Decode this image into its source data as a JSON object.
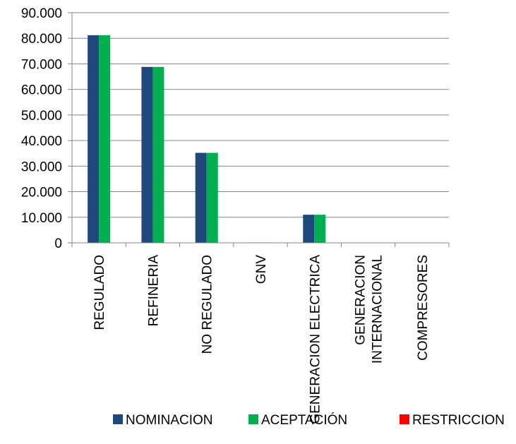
{
  "chart_data": {
    "type": "bar",
    "categories": [
      [
        "REGULADO"
      ],
      [
        "REFINERIA"
      ],
      [
        "NO REGULADO"
      ],
      [
        "GNV"
      ],
      [
        "GENERACION ELECTRICA"
      ],
      [
        "GENERACION",
        "INTERNACIONAL"
      ],
      [
        "COMPRESORES"
      ]
    ],
    "series": [
      {
        "name": "NOMINACION",
        "color": "#1F497D",
        "values": [
          81200,
          68800,
          35200,
          150,
          11000,
          0,
          0
        ]
      },
      {
        "name": "ACEPTACIÓN",
        "color": "#00B050",
        "values": [
          81200,
          68800,
          35200,
          150,
          11000,
          0,
          0
        ]
      },
      {
        "name": "RESTRICCION",
        "color": "#FF0000",
        "values": [
          0,
          0,
          0,
          0,
          0,
          0,
          0
        ]
      }
    ],
    "yticks": [
      "0",
      "10.000",
      "20.000",
      "30.000",
      "40.000",
      "50.000",
      "60.000",
      "70.000",
      "80.000",
      "90.000"
    ],
    "ylim": [
      0,
      90000
    ],
    "grid": true,
    "legend_position": "bottom"
  }
}
